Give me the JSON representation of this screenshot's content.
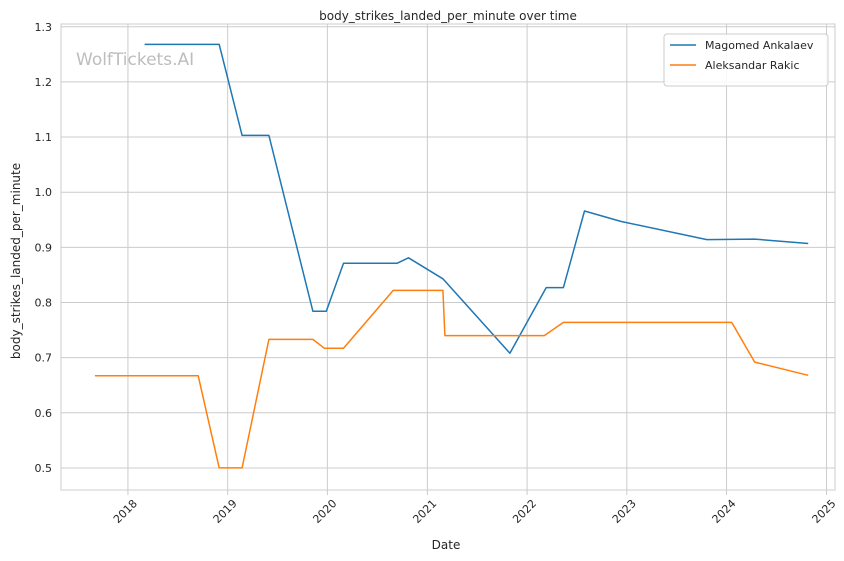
{
  "chart_data": {
    "type": "line",
    "title": "body_strikes_landed_per_minute over time",
    "xlabel": "Date",
    "ylabel": "body_strikes_landed_per_minute",
    "x_ticks": [
      "2018",
      "2019",
      "2020",
      "2021",
      "2022",
      "2023",
      "2024",
      "2025"
    ],
    "y_ticks": [
      "0.5",
      "0.6",
      "0.7",
      "0.8",
      "0.9",
      "1.0",
      "1.1",
      "1.2",
      "1.3"
    ],
    "xlim": [
      "2017-05-01",
      "2025-02-01"
    ],
    "ylim": [
      0.46,
      1.305
    ],
    "grid": true,
    "legend_position": "top-right",
    "watermark": "WolfTickets.AI",
    "series": [
      {
        "name": "Magomed Ankalaev",
        "color": "#1f77b4",
        "points": [
          [
            "2018-03-03",
            1.268
          ],
          [
            "2018-12-01",
            1.268
          ],
          [
            "2019-02-23",
            1.103
          ],
          [
            "2019-06-01",
            1.103
          ],
          [
            "2019-11-09",
            0.784
          ],
          [
            "2019-12-28",
            0.784
          ],
          [
            "2020-02-29",
            0.871
          ],
          [
            "2020-09-12",
            0.871
          ],
          [
            "2020-10-24",
            0.881
          ],
          [
            "2021-02-27",
            0.843
          ],
          [
            "2021-10-30",
            0.708
          ],
          [
            "2022-03-12",
            0.827
          ],
          [
            "2022-05-14",
            0.827
          ],
          [
            "2022-07-30",
            0.966
          ],
          [
            "2022-12-10",
            0.947
          ],
          [
            "2023-10-21",
            0.914
          ],
          [
            "2024-04-13",
            0.915
          ],
          [
            "2024-10-26",
            0.907
          ]
        ]
      },
      {
        "name": "Aleksandar Rakic",
        "color": "#ff7f0e",
        "points": [
          [
            "2017-09-02",
            0.667
          ],
          [
            "2018-09-15",
            0.667
          ],
          [
            "2018-12-01",
            0.5
          ],
          [
            "2019-02-23",
            0.5
          ],
          [
            "2019-06-01",
            0.733
          ],
          [
            "2019-11-09",
            0.733
          ],
          [
            "2019-12-21",
            0.717
          ],
          [
            "2020-02-29",
            0.717
          ],
          [
            "2020-08-29",
            0.822
          ],
          [
            "2021-02-27",
            0.822
          ],
          [
            "2021-03-06",
            0.74
          ],
          [
            "2022-03-05",
            0.74
          ],
          [
            "2022-05-14",
            0.764
          ],
          [
            "2024-01-20",
            0.764
          ],
          [
            "2024-04-13",
            0.692
          ],
          [
            "2024-10-26",
            0.668
          ]
        ]
      }
    ]
  }
}
